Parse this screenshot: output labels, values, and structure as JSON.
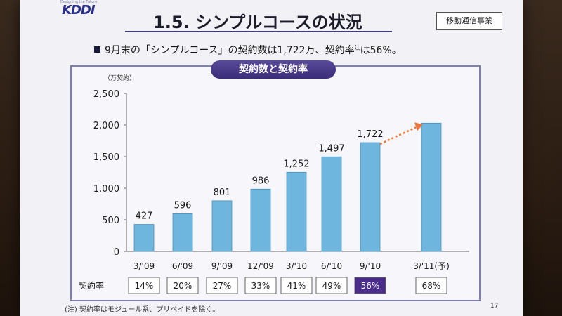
{
  "slide": {
    "logo_tag": "Designing the Future",
    "logo": "KDDI",
    "title": "1.5. シンプルコースの状況",
    "department": "移動通信事業",
    "summary_pre": "9月末の「シンプルコース」の契約数は1,722万、契約率",
    "summary_sup": "注",
    "summary_post": "は56%。",
    "footnote": "(注) 契約率はモジュール系、プリペイドを除く。",
    "page_number": "17"
  },
  "chart_data": {
    "type": "bar",
    "title": "契約数と契約率",
    "ylabel": "（万契約）",
    "ylim": [
      0,
      2500
    ],
    "yticks": [
      0,
      500,
      1000,
      1500,
      2000,
      2500
    ],
    "yticks_labels": [
      "0",
      "500",
      "1,000",
      "1,500",
      "2,000",
      "2,500"
    ],
    "categories": [
      "3/'09",
      "6/'09",
      "9/'09",
      "12/'09",
      "3/'10",
      "6/'10",
      "9/'10",
      "3/'11(予)"
    ],
    "values": [
      427,
      596,
      801,
      986,
      1252,
      1497,
      1722,
      2030
    ],
    "value_labels": [
      "427",
      "596",
      "801",
      "986",
      "1,252",
      "1,497",
      "1,722",
      ""
    ],
    "rate_label": "契約率",
    "rates": [
      "14%",
      "20%",
      "27%",
      "33%",
      "41%",
      "49%",
      "56%",
      "68%"
    ],
    "highlight_index": 6,
    "bar_color": "#6fb6df",
    "highlight_color": "#4a2d8a",
    "arrow_color": "#e8743a",
    "grid": false
  }
}
